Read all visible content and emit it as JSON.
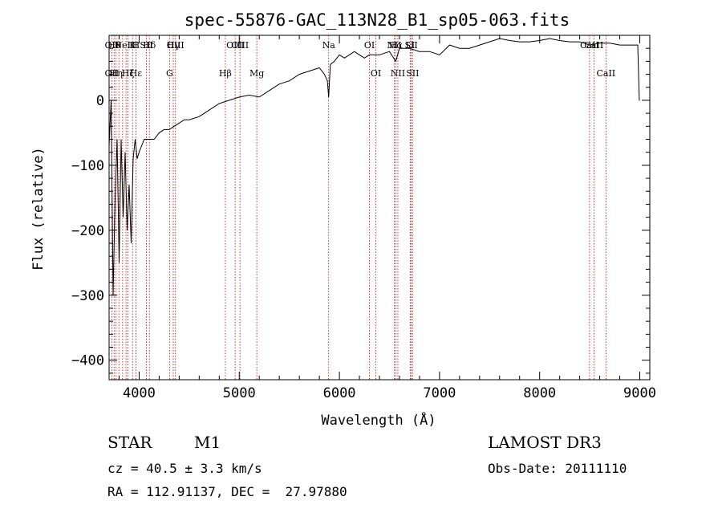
{
  "chart_data": {
    "type": "line",
    "title": "spec-55876-GAC_113N28_B1_sp05-063.fits",
    "xlabel": "Wavelength (Å)",
    "ylabel": "Flux (relative)",
    "xlim": [
      3700,
      9100
    ],
    "ylim": [
      -430,
      100
    ],
    "xticks": [
      "4000",
      "5000",
      "6000",
      "7000",
      "8000",
      "9000"
    ],
    "xtick_values": [
      4000,
      5000,
      6000,
      7000,
      8000,
      9000
    ],
    "yticks": [
      "0",
      "−100",
      "−200",
      "−300",
      "−400"
    ],
    "ytick_values": [
      0,
      -100,
      -200,
      -300,
      -400
    ],
    "grid": false,
    "line_color": "#000000",
    "marker_color": "#cc0000",
    "series": [
      {
        "x": [
          3700,
          3720,
          3740,
          3760,
          3780,
          3800,
          3820,
          3840,
          3860,
          3880,
          3900,
          3920,
          3940,
          3960,
          3980,
          4000,
          4050,
          4100,
          4150,
          4200,
          4250,
          4300,
          4350,
          4400,
          4450,
          4500,
          4600,
          4700,
          4800,
          4900,
          5000,
          5100,
          5200,
          5300,
          5400,
          5500,
          5600,
          5700,
          5800,
          5850,
          5880,
          5893,
          5910,
          5950,
          6000,
          6050,
          6100,
          6150,
          6200,
          6250,
          6300,
          6400,
          6500,
          6563,
          6600,
          6700,
          6800,
          6900,
          7000,
          7100,
          7200,
          7300,
          7400,
          7500,
          7600,
          7700,
          7800,
          7900,
          8000,
          8100,
          8200,
          8300,
          8400,
          8500,
          8600,
          8700,
          8800,
          8900,
          8980,
          8995,
          9000
        ],
        "y": [
          -70,
          0,
          -300,
          -150,
          -60,
          -250,
          -60,
          -180,
          -80,
          -200,
          -130,
          -220,
          -90,
          -60,
          -90,
          -80,
          -60,
          -60,
          -60,
          -50,
          -45,
          -45,
          -40,
          -35,
          -30,
          -30,
          -25,
          -15,
          -5,
          0,
          5,
          8,
          5,
          15,
          25,
          30,
          40,
          45,
          50,
          40,
          30,
          5,
          55,
          60,
          70,
          65,
          70,
          75,
          70,
          65,
          70,
          70,
          75,
          60,
          80,
          80,
          75,
          75,
          70,
          85,
          80,
          80,
          85,
          90,
          95,
          92,
          90,
          90,
          92,
          95,
          92,
          90,
          90,
          85,
          88,
          88,
          85,
          85,
          85,
          0,
          0
        ]
      }
    ],
    "lines": [
      {
        "w": 3727,
        "top": "OII",
        "bottom": "OII"
      },
      {
        "w": 3750,
        "top": "Hθ",
        "bottom": ""
      },
      {
        "w": 3770,
        "top": "",
        "bottom": "Hη"
      },
      {
        "w": 3798,
        "top": "",
        "bottom": ""
      },
      {
        "w": 3835,
        "top": "",
        "bottom": ""
      },
      {
        "w": 3869,
        "top": "NeIII",
        "bottom": ""
      },
      {
        "w": 3889,
        "top": "",
        "bottom": "Hζ"
      },
      {
        "w": 3934,
        "top": "K",
        "bottom": ""
      },
      {
        "w": 3968,
        "top": "H",
        "bottom": "Hε"
      },
      {
        "w": 4072,
        "top": "SII",
        "bottom": ""
      },
      {
        "w": 4102,
        "top": "Hδ",
        "bottom": ""
      },
      {
        "w": 4304,
        "top": "",
        "bottom": "G"
      },
      {
        "w": 4341,
        "top": "Hγ",
        "bottom": ""
      },
      {
        "w": 4363,
        "top": "OIII",
        "bottom": ""
      },
      {
        "w": 4861,
        "top": "",
        "bottom": "Hβ"
      },
      {
        "w": 4959,
        "top": "OIII",
        "bottom": ""
      },
      {
        "w": 5007,
        "top": "OIII",
        "bottom": ""
      },
      {
        "w": 5175,
        "top": "",
        "bottom": "Mg"
      },
      {
        "w": 5893,
        "top": "Na",
        "bottom": ""
      },
      {
        "w": 6300,
        "top": "OI",
        "bottom": ""
      },
      {
        "w": 6364,
        "top": "",
        "bottom": "OI"
      },
      {
        "w": 6548,
        "top": "NII",
        "bottom": ""
      },
      {
        "w": 6563,
        "top": "Hα",
        "bottom": ""
      },
      {
        "w": 6584,
        "top": "",
        "bottom": "NII"
      },
      {
        "w": 6717,
        "top": "SII",
        "bottom": ""
      },
      {
        "w": 6731,
        "top": "",
        "bottom": "SII"
      },
      {
        "w": 6708,
        "top": "LI",
        "bottom": ""
      },
      {
        "w": 8498,
        "top": "CaII",
        "bottom": ""
      },
      {
        "w": 8542,
        "top": "CaII",
        "bottom": ""
      },
      {
        "w": 8662,
        "top": "",
        "bottom": "CaII"
      }
    ]
  },
  "info": {
    "class": "STAR",
    "subclass": "M1",
    "survey": "LAMOST DR3",
    "cz": "cz = 40.5 ± 3.3 km/s",
    "obs_date": "Obs-Date: 20111110",
    "radec": "RA = 112.91137, DEC =  27.97880"
  }
}
